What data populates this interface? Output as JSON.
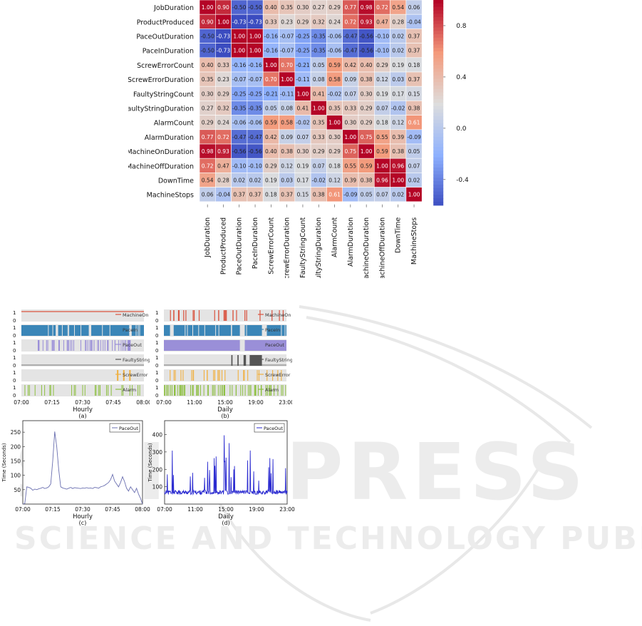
{
  "heatmap": {
    "type": "heatmap",
    "labels": [
      "JobDuration",
      "ProductProduced",
      "PaceOutDuration",
      "PaceInDuration",
      "ScrewErrorCount",
      "ScrewErrorDuration",
      "FaultyStringCount",
      "FaultyStringDuration",
      "AlarmCount",
      "AlarmDuration",
      "MachineOnDuration",
      "MachineOffDuration",
      "DownTime",
      "MachineStops"
    ],
    "values": [
      [
        1.0,
        0.9,
        -0.5,
        -0.5,
        0.4,
        0.35,
        0.3,
        0.27,
        0.29,
        0.77,
        0.98,
        0.72,
        0.54,
        0.06
      ],
      [
        0.9,
        1.0,
        -0.73,
        -0.73,
        0.33,
        0.23,
        0.29,
        0.32,
        0.24,
        0.72,
        0.93,
        0.47,
        0.28,
        -0.04
      ],
      [
        -0.5,
        -0.73,
        1.0,
        1.0,
        -0.16,
        -0.07,
        -0.25,
        -0.35,
        -0.06,
        -0.47,
        -0.56,
        -0.1,
        0.02,
        0.37
      ],
      [
        -0.5,
        -0.73,
        1.0,
        1.0,
        -0.16,
        -0.07,
        -0.25,
        -0.35,
        -0.06,
        -0.47,
        -0.56,
        -0.1,
        0.02,
        0.37
      ],
      [
        0.4,
        0.33,
        -0.16,
        -0.16,
        1.0,
        0.7,
        -0.21,
        0.05,
        0.59,
        0.42,
        0.4,
        0.29,
        0.19,
        0.18
      ],
      [
        0.35,
        0.23,
        -0.07,
        -0.07,
        0.7,
        1.0,
        -0.11,
        0.08,
        0.58,
        0.09,
        0.38,
        0.12,
        0.03,
        0.37
      ],
      [
        0.3,
        0.29,
        -0.25,
        -0.25,
        -0.21,
        -0.11,
        1.0,
        0.41,
        -0.02,
        0.07,
        0.3,
        0.19,
        0.17,
        0.15
      ],
      [
        0.27,
        0.32,
        -0.35,
        -0.35,
        0.05,
        0.08,
        0.41,
        1.0,
        0.35,
        0.33,
        0.29,
        0.07,
        -0.02,
        0.38
      ],
      [
        0.29,
        0.24,
        -0.06,
        -0.06,
        0.59,
        0.58,
        -0.02,
        0.35,
        1.0,
        0.3,
        0.29,
        0.18,
        0.12,
        0.61
      ],
      [
        0.77,
        0.72,
        -0.47,
        -0.47,
        0.42,
        0.09,
        0.07,
        0.33,
        0.3,
        1.0,
        0.75,
        0.55,
        0.39,
        -0.09
      ],
      [
        0.98,
        0.93,
        -0.56,
        -0.56,
        0.4,
        0.38,
        0.3,
        0.29,
        0.29,
        0.75,
        1.0,
        0.59,
        0.38,
        0.05
      ],
      [
        0.72,
        0.47,
        -0.1,
        -0.1,
        0.29,
        0.12,
        0.19,
        0.07,
        0.18,
        0.55,
        0.59,
        1.0,
        0.96,
        0.07
      ],
      [
        0.54,
        0.28,
        0.02,
        0.02,
        0.19,
        0.03,
        0.17,
        -0.02,
        0.12,
        0.39,
        0.38,
        0.96,
        1.0,
        0.02
      ],
      [
        0.06,
        -0.04,
        0.37,
        0.37,
        0.18,
        0.37,
        0.15,
        0.38,
        0.61,
        -0.09,
        0.05,
        0.07,
        0.02,
        1.0
      ]
    ],
    "colorbar_ticks": [
      "0.8",
      "0.4",
      "0.0",
      "-0.4"
    ],
    "colorbar_range": [
      -0.6,
      1.0
    ]
  },
  "panel_a": {
    "xlabel": "Hourly",
    "caption": "(a)",
    "ticks": [
      "07:00",
      "07:15",
      "07:30",
      "07:45",
      "08:00"
    ],
    "tracks": [
      {
        "name": "MachineOn",
        "color": "#d9533f"
      },
      {
        "name": "PaceIn",
        "color": "#3b86b8"
      },
      {
        "name": "PaceOut",
        "color": "#9a8fd8"
      },
      {
        "name": "FaultyString",
        "color": "#555555"
      },
      {
        "name": "ScrewError",
        "color": "#f0b040"
      },
      {
        "name": "Alarm",
        "color": "#8cbf3f"
      }
    ],
    "y01": [
      "1",
      "0"
    ]
  },
  "panel_b": {
    "xlabel": "Daily",
    "caption": "(b)",
    "ticks": [
      "07:00",
      "11:00",
      "15:00",
      "19:00",
      "23:00"
    ],
    "tracks": [
      {
        "name": "MachineOn",
        "color": "#d9533f"
      },
      {
        "name": "PaceIn",
        "color": "#3b86b8"
      },
      {
        "name": "PaceOut",
        "color": "#9a8fd8"
      },
      {
        "name": "FaultyString",
        "color": "#555555"
      },
      {
        "name": "ScrewError",
        "color": "#f0b040"
      },
      {
        "name": "Alarm",
        "color": "#8cbf3f"
      }
    ],
    "y01": [
      "1",
      "0"
    ]
  },
  "panel_c": {
    "type": "line",
    "xlabel": "Hourly",
    "caption": "(c)",
    "ylabel": "Time (Seconds)",
    "legend": "PaceOut",
    "color": "#6a6fb0",
    "ticks": [
      "07:00",
      "07:15",
      "07:30",
      "07:45",
      "08:00"
    ],
    "yticks": [
      50,
      100,
      150,
      200,
      250
    ],
    "ylim": [
      0,
      290
    ],
    "x": [
      0,
      1,
      2,
      3,
      4,
      5,
      6,
      7,
      8,
      9,
      10,
      11,
      12,
      13,
      14,
      15,
      16,
      17,
      18,
      19,
      20,
      21,
      22,
      23,
      24,
      25,
      26,
      27,
      28,
      29,
      30,
      31,
      32,
      33,
      34,
      35,
      36,
      37,
      38,
      39,
      40,
      41,
      42,
      43,
      44,
      45,
      46,
      47,
      48,
      49,
      50,
      51,
      52,
      53,
      54,
      55,
      56,
      57,
      58,
      59,
      60
    ],
    "values": [
      0,
      2,
      60,
      58,
      55,
      48,
      52,
      50,
      53,
      55,
      58,
      54,
      56,
      60,
      70,
      150,
      252,
      200,
      120,
      60,
      56,
      54,
      52,
      55,
      58,
      54,
      57,
      56,
      55,
      54,
      56,
      55,
      57,
      55,
      56,
      54,
      58,
      57,
      55,
      60,
      62,
      65,
      70,
      75,
      85,
      103,
      80,
      70,
      60,
      75,
      95,
      78,
      55,
      45,
      60,
      50,
      40,
      55,
      35,
      20,
      0
    ]
  },
  "panel_d": {
    "type": "line",
    "xlabel": "Daily",
    "caption": "(d)",
    "ylabel": "Time (Seconds)",
    "legend": "PaceOut",
    "color": "#2a2ad0",
    "ticks": [
      "07:00",
      "11:00",
      "15:00",
      "19:00",
      "23:00"
    ],
    "yticks": [
      100,
      200,
      300,
      400
    ],
    "ylim": [
      0,
      480
    ]
  }
}
